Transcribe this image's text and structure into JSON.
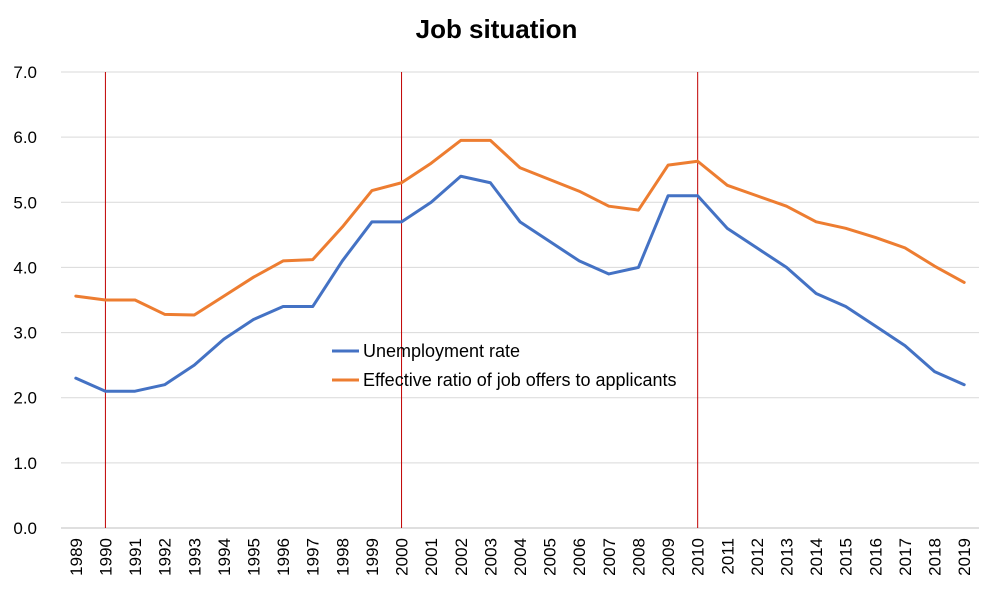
{
  "chart_data": {
    "type": "line",
    "title": "Job situation",
    "xlabel": "",
    "ylabel": "",
    "ylim": [
      0,
      7
    ],
    "yticks": [
      "0.0",
      "1.0",
      "2.0",
      "3.0",
      "4.0",
      "5.0",
      "6.0",
      "7.0"
    ],
    "grid": true,
    "legend_position": "center",
    "categories": [
      "1989",
      "1990",
      "1991",
      "1992",
      "1993",
      "1994",
      "1995",
      "1996",
      "1997",
      "1998",
      "1999",
      "2000",
      "2001",
      "2002",
      "2003",
      "2004",
      "2005",
      "2006",
      "2007",
      "2008",
      "2009",
      "2010",
      "2011",
      "2012",
      "2013",
      "2014",
      "2015",
      "2016",
      "2017",
      "2018",
      "2019"
    ],
    "series": [
      {
        "name": "Unemployment rate",
        "color": "#4472c4",
        "values": [
          2.3,
          2.1,
          2.1,
          2.2,
          2.5,
          2.9,
          3.2,
          3.4,
          3.4,
          4.1,
          4.7,
          4.7,
          5.0,
          5.4,
          5.3,
          4.7,
          4.4,
          4.1,
          3.9,
          4.0,
          5.1,
          5.1,
          4.6,
          4.3,
          4.0,
          3.6,
          3.4,
          3.1,
          2.8,
          2.4,
          2.2
        ]
      },
      {
        "name": "Effective ratio of job offers to applicants",
        "color": "#ed7d31",
        "values": [
          3.56,
          3.5,
          3.5,
          3.28,
          3.27,
          3.56,
          3.85,
          4.1,
          4.12,
          4.62,
          5.18,
          5.3,
          5.6,
          5.95,
          5.95,
          5.53,
          5.35,
          5.17,
          4.94,
          4.88,
          5.57,
          5.63,
          5.26,
          5.1,
          4.94,
          4.7,
          4.6,
          4.46,
          4.3,
          4.02,
          3.77
        ]
      }
    ],
    "vertical_markers": {
      "color": "#c00000",
      "at": [
        "1990",
        "2000",
        "2010"
      ]
    },
    "grid_color": "#d9d9d9"
  }
}
